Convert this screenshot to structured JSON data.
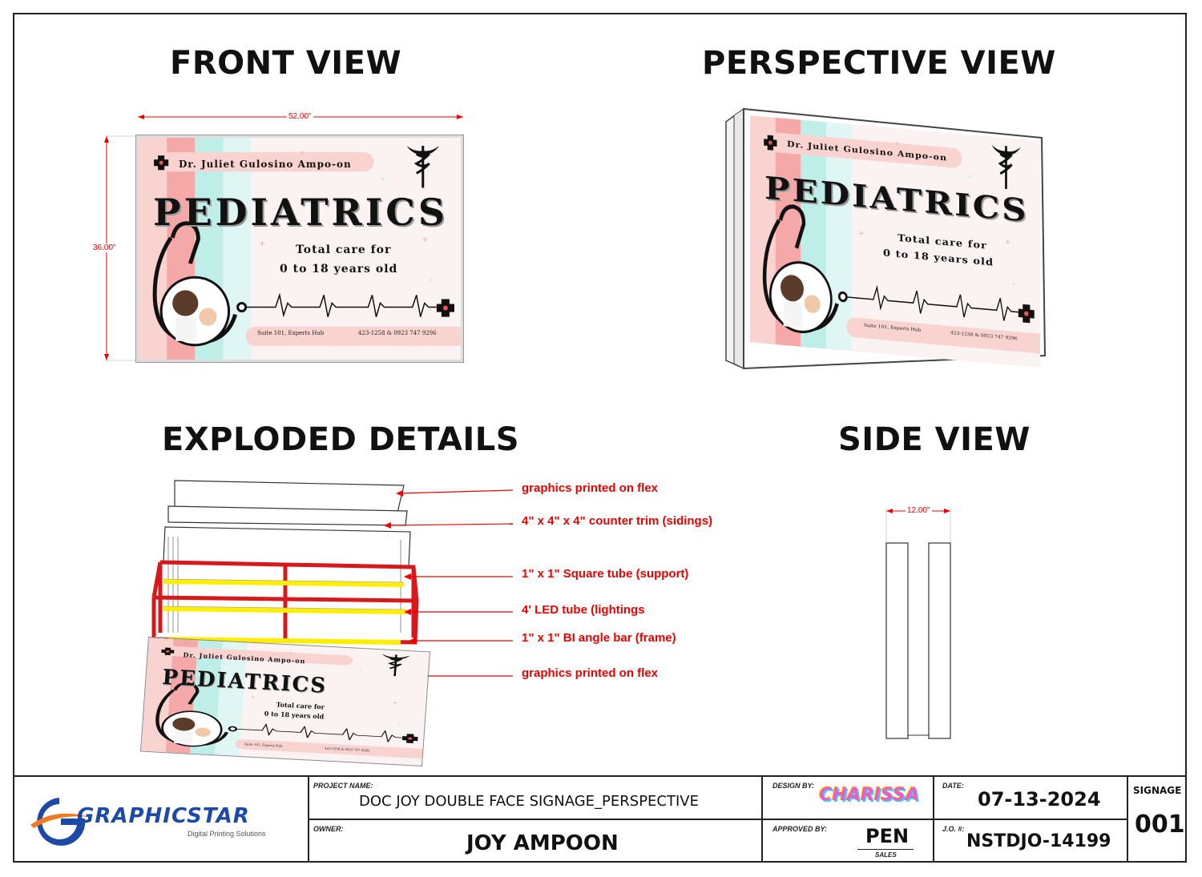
{
  "titles": {
    "front": "FRONT VIEW",
    "perspective": "PERSPECTIVE VIEW",
    "exploded": "EXPLODED DETAILS",
    "side": "SIDE VIEW"
  },
  "dimensions": {
    "width": "52.00\"",
    "height": "36.00\"",
    "depth": "12.00\""
  },
  "sign": {
    "doctor": "Dr. Juliet Gulosino Ampo-on",
    "specialty": "PEDIATRICS",
    "tagline_1": "Total care for",
    "tagline_2": "0 to 18 years old",
    "address": "Suite 101, Experts Hub",
    "phone": "423-1258 & 0923 747 9296"
  },
  "callouts": [
    "graphics printed on flex",
    "4\" x 4\" x 4\" counter trim (sidings)",
    "1\" x 1\" Square tube (support)",
    "4' LED tube  (lightings",
    "1\" x 1\" BI angle bar (frame)",
    "graphics printed on flex"
  ],
  "title_block": {
    "logo_name": "GRAPHICSTAR",
    "logo_tagline": "Digital Printing Solutions",
    "project_label": "PROJECT NAME:",
    "project_name": "DOC JOY DOUBLE FACE SIGNAGE_PERSPECTIVE",
    "owner_label": "OWNER:",
    "owner": "JOY AMPOON",
    "design_label": "DESIGN BY:",
    "designer": "CHARISSA",
    "approved_label": "APPROVED BY:",
    "approver": "PEN",
    "approver_role": "SALES",
    "date_label": "DATE:",
    "date": "07-13-2024",
    "jo_label": "J.O. #:",
    "jo_number": "NSTDJO-14199",
    "signage_label": "SIGNAGE",
    "signage_number": "001"
  },
  "colors": {
    "pink": "#f4a9a8",
    "pink_light": "#f9d3d0",
    "mint": "#bfeee9",
    "mint_light": "#dff6f4",
    "bg": "#faf3f1",
    "frame_red": "#d7191c",
    "led_yellow": "#ffee00",
    "callout_red": "#e00000"
  }
}
